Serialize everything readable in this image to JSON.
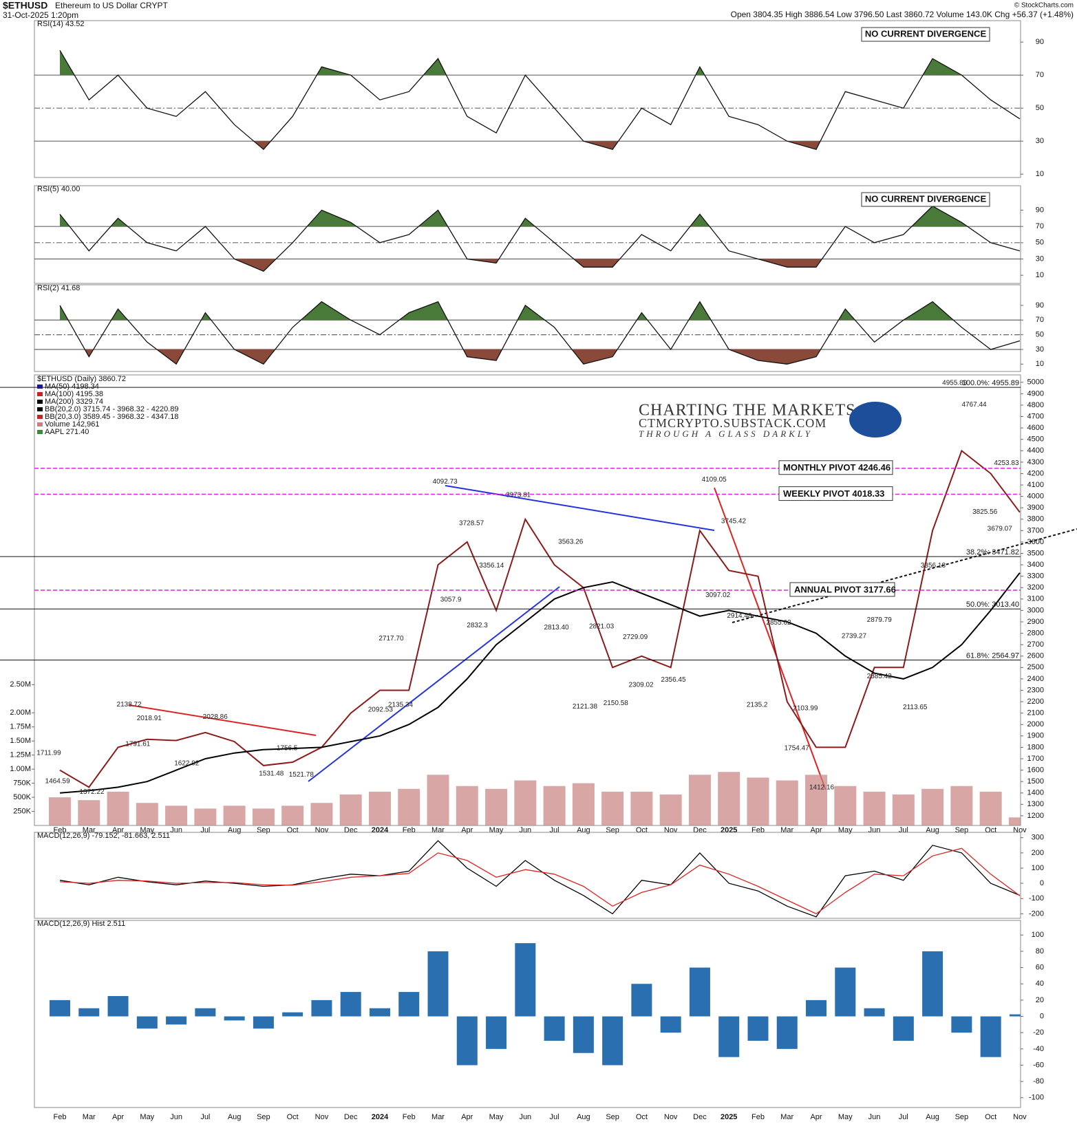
{
  "header": {
    "symbol": "$ETHUSD",
    "description": "Ethereum to US Dollar  CRYPT",
    "timestamp": "31-Oct-2025 1:20pm",
    "quote": "Open 3804.35  High 3886.54  Low 3796.50  Last 3860.72  Volume 143.0K  Chg +56.37 (+1.48%)",
    "credit": "© StockCharts.com"
  },
  "watermark": {
    "line1": "CHARTING THE MARKETS AT",
    "line2": "CTMCRYPTO.SUBSTACK.COM",
    "line3": "THROUGH A GLASS DARKLY"
  },
  "chart_data": [
    {
      "type": "line",
      "label": "RSI(14) 43.52",
      "ylim": [
        8,
        103
      ],
      "yticks": [
        10,
        30,
        50,
        70,
        90
      ],
      "levels": [
        30,
        50,
        70
      ],
      "fill_above": 70,
      "fill_below": 30,
      "annotation": "NO CURRENT DIVERGENCE",
      "series": [
        {
          "color": "#111111",
          "values": [
            85,
            55,
            70,
            50,
            45,
            60,
            40,
            25,
            45,
            75,
            70,
            55,
            60,
            80,
            45,
            35,
            70,
            50,
            30,
            25,
            50,
            40,
            75,
            45,
            40,
            30,
            25,
            60,
            55,
            50,
            80,
            70,
            55,
            43.52
          ]
        }
      ]
    },
    {
      "type": "line",
      "label": "RSI(5) 40.00",
      "ylim": [
        0,
        120
      ],
      "yticks": [
        10,
        30,
        50,
        70,
        90
      ],
      "levels": [
        30,
        50,
        70
      ],
      "fill_above": 70,
      "fill_below": 30,
      "annotation": "NO CURRENT DIVERGENCE",
      "series": [
        {
          "color": "#111111",
          "values": [
            85,
            40,
            80,
            50,
            40,
            70,
            30,
            15,
            50,
            90,
            75,
            50,
            60,
            90,
            30,
            25,
            80,
            50,
            20,
            20,
            60,
            40,
            85,
            40,
            30,
            20,
            20,
            70,
            50,
            60,
            95,
            75,
            50,
            40
          ]
        }
      ]
    },
    {
      "type": "line",
      "label": "RSI(2) 41.68",
      "ylim": [
        0,
        118
      ],
      "yticks": [
        10,
        30,
        50,
        70,
        90
      ],
      "levels": [
        30,
        50,
        70
      ],
      "fill_above": 70,
      "fill_below": 30,
      "series": [
        {
          "color": "#111111",
          "values": [
            90,
            20,
            85,
            40,
            10,
            80,
            30,
            10,
            60,
            95,
            70,
            50,
            80,
            95,
            20,
            15,
            90,
            60,
            10,
            20,
            80,
            30,
            95,
            30,
            15,
            10,
            20,
            85,
            40,
            70,
            95,
            60,
            30,
            41.68
          ]
        }
      ]
    },
    {
      "type": "line",
      "title": "$ETHUSD (Daily) 3860.72",
      "categories": [
        "Feb",
        "Mar",
        "Apr",
        "May",
        "Jun",
        "Jul",
        "Aug",
        "Sep",
        "Oct",
        "Nov",
        "Dec",
        "2024",
        "Feb",
        "Mar",
        "Apr",
        "May",
        "Jun",
        "Jul",
        "Aug",
        "Sep",
        "Oct",
        "Nov",
        "Dec",
        "2025",
        "Feb",
        "Mar",
        "Apr",
        "May",
        "Jun",
        "Jul",
        "Aug",
        "Sep",
        "Oct",
        "Nov"
      ],
      "ylim": [
        1115,
        5065
      ],
      "yticks": [
        1200,
        1300,
        1400,
        1500,
        1600,
        1700,
        1800,
        1900,
        2000,
        2100,
        2200,
        2300,
        2400,
        2500,
        2600,
        2700,
        2800,
        2900,
        3000,
        3100,
        3200,
        3300,
        3400,
        3500,
        3600,
        3700,
        3800,
        3900,
        4000,
        4100,
        4200,
        4300,
        4400,
        4500,
        4600,
        4700,
        4800,
        4900,
        5000
      ],
      "series": [
        {
          "name": "$ETHUSD (Daily) 3860.72",
          "color": "#8b1a1a",
          "values": [
            1600,
            1450,
            1800,
            1870,
            1860,
            1930,
            1850,
            1640,
            1670,
            1800,
            2100,
            2300,
            2300,
            3400,
            3600,
            3000,
            3800,
            3400,
            3200,
            2500,
            2600,
            2500,
            3700,
            3350,
            3300,
            2200,
            1800,
            1800,
            2500,
            2500,
            3700,
            4400,
            4200,
            3860.72
          ]
        },
        {
          "name": "MA(200) 3329.74",
          "color": "#000000",
          "values": [
            1400,
            1420,
            1450,
            1500,
            1600,
            1700,
            1750,
            1780,
            1790,
            1800,
            1850,
            1900,
            2000,
            2150,
            2400,
            2700,
            2900,
            3100,
            3200,
            3250,
            3150,
            3050,
            2950,
            3000,
            2950,
            2900,
            2800,
            2600,
            2450,
            2400,
            2500,
            2700,
            3000,
            3329.74
          ]
        }
      ],
      "legend_extra": [
        {
          "name": "MA(50) 4198.34",
          "color": "#1a1a8c"
        },
        {
          "name": "MA(100) 4195.38",
          "color": "#cc2222"
        },
        {
          "name": "BB(20,2.0) 3715.74 - 3968.32 - 4220.89",
          "color": "#000000"
        },
        {
          "name": "BB(20,3.0) 3589.45 - 3968.32 - 4347.18",
          "color": "#cc2222"
        },
        {
          "name": "AAPL 271.40",
          "color": "#3a8a3a"
        }
      ],
      "volume": {
        "name": "Volume 142,961",
        "color": "#c98080",
        "values": [
          500000,
          450000,
          600000,
          400000,
          350000,
          300000,
          350000,
          300000,
          350000,
          400000,
          550000,
          600000,
          650000,
          900000,
          700000,
          650000,
          800000,
          700000,
          750000,
          600000,
          600000,
          550000,
          900000,
          950000,
          850000,
          800000,
          900000,
          700000,
          600000,
          550000,
          650000,
          700000,
          600000,
          142961
        ]
      },
      "vlim": [
        0,
        8000000
      ],
      "vticks": [
        {
          "value": 250000,
          "label": "250K"
        },
        {
          "value": 500000,
          "label": "500K"
        },
        {
          "value": 750000,
          "label": "750K"
        },
        {
          "value": 1000000,
          "label": "1.00M"
        },
        {
          "value": 1250000,
          "label": "1.25M"
        },
        {
          "value": 1500000,
          "label": "1.50M"
        },
        {
          "value": 1750000,
          "label": "1.75M"
        },
        {
          "value": 2000000,
          "label": "2.00M"
        },
        {
          "value": 2500000,
          "label": "2.50M"
        }
      ],
      "pivots": [
        {
          "label": "MONTHLY PIVOT 4246.46",
          "value": 4246.46
        },
        {
          "label": "WEEKLY PIVOT 4018.33",
          "value": 4018.33
        },
        {
          "label": "ANNUAL PIVOT 3177.66",
          "value": 3177.66
        }
      ],
      "pivot_color": "#e020e0",
      "fib_levels": [
        {
          "label": "100.0%: 4955.89",
          "value": 4955.89
        },
        {
          "label": "38.2%: 3471.82",
          "value": 3471.82
        },
        {
          "label": "50.0%: 3013.40",
          "value": 3013.4
        },
        {
          "label": "61.8%: 2564.97",
          "value": 2564.97
        }
      ],
      "price_labels": [
        {
          "value": 1711.99,
          "x": -0.38
        },
        {
          "value": 1464.59,
          "x": -0.08
        },
        {
          "value": 1372.22,
          "x": 1.1
        },
        {
          "value": 2138.72,
          "x": 2.38
        },
        {
          "value": 2018.91,
          "x": 3.07
        },
        {
          "value": 1791.61,
          "x": 2.68
        },
        {
          "value": 1622.92,
          "x": 4.36
        },
        {
          "value": 2028.86,
          "x": 5.34
        },
        {
          "value": 1531.48,
          "x": 7.27
        },
        {
          "value": 1756.5,
          "x": 7.81
        },
        {
          "value": 1521.78,
          "x": 8.3
        },
        {
          "value": 2092.53,
          "x": 11.02
        },
        {
          "value": 2135.34,
          "x": 11.71
        },
        {
          "value": 2717.7,
          "label": "2717.70",
          "x": 11.39
        },
        {
          "value": 4092.73,
          "x": 13.24
        },
        {
          "value": 3728.57,
          "x": 14.15
        },
        {
          "value": 3356.14,
          "x": 14.84
        },
        {
          "value": 3057.9,
          "x": 13.44
        },
        {
          "value": 2832.3,
          "x": 14.35
        },
        {
          "value": 3973.81,
          "x": 15.76
        },
        {
          "value": 3563.26,
          "x": 17.56
        },
        {
          "value": 2813.4,
          "label": "2813.40",
          "x": 17.07
        },
        {
          "value": 2821.03,
          "x": 18.62
        },
        {
          "value": 2729.09,
          "x": 19.78
        },
        {
          "value": 2121.38,
          "x": 18.05
        },
        {
          "value": 2150.58,
          "x": 19.11
        },
        {
          "value": 2309.02,
          "x": 19.98
        },
        {
          "value": 2356.45,
          "x": 21.09
        },
        {
          "value": 4109.05,
          "x": 22.49
        },
        {
          "value": 3745.42,
          "x": 23.16
        },
        {
          "value": 3097.02,
          "x": 22.62
        },
        {
          "value": 2914.48,
          "x": 23.36
        },
        {
          "value": 2855.62,
          "x": 24.71
        },
        {
          "value": 2135.2,
          "x": 23.97
        },
        {
          "value": 2739.27,
          "x": 27.3
        },
        {
          "value": 2879.79,
          "x": 28.17
        },
        {
          "value": 2103.99,
          "x": 25.63
        },
        {
          "value": 1754.47,
          "x": 25.33
        },
        {
          "value": 1412.16,
          "x": 26.19
        },
        {
          "value": 2385.42,
          "x": 28.17
        },
        {
          "value": 2113.65,
          "x": 29.4
        },
        {
          "value": 3356.18,
          "x": 30.02
        },
        {
          "value": 4955.89,
          "x": 30.76
        },
        {
          "value": 4767.44,
          "x": 31.43
        },
        {
          "value": 4253.83,
          "x": 32.54
        },
        {
          "value": 3825.56,
          "x": 31.8
        },
        {
          "value": 3679.07,
          "x": 32.31
        }
      ]
    },
    {
      "type": "line",
      "label": "MACD(12,26,9) -79.152, -81.663, 2.511",
      "ylim": [
        -230,
        335
      ],
      "yticks": [
        -200,
        -100,
        0,
        100,
        200,
        300
      ],
      "series": [
        {
          "color": "#000000",
          "values": [
            20,
            -10,
            40,
            10,
            -10,
            15,
            0,
            -20,
            -10,
            30,
            60,
            50,
            80,
            280,
            100,
            -20,
            150,
            20,
            -80,
            -200,
            20,
            -10,
            200,
            0,
            -50,
            -150,
            -220,
            50,
            80,
            20,
            250,
            200,
            0,
            -79.152
          ]
        },
        {
          "color": "#dd2222",
          "values": [
            10,
            0,
            20,
            15,
            0,
            5,
            5,
            -10,
            -12,
            10,
            40,
            50,
            65,
            200,
            150,
            40,
            90,
            60,
            -20,
            -150,
            -60,
            -10,
            120,
            60,
            -20,
            -110,
            -200,
            -60,
            60,
            50,
            180,
            230,
            60,
            -81.663
          ]
        }
      ]
    },
    {
      "type": "bar",
      "label": "MACD(12,26,9) Hist 2.511",
      "ylim": [
        -112,
        118
      ],
      "yticks": [
        -100,
        -80,
        -60,
        -40,
        -20,
        0,
        20,
        40,
        60,
        80,
        100
      ],
      "color": "#2a6fb0",
      "values": [
        20,
        10,
        25,
        -15,
        -10,
        10,
        -5,
        -15,
        5,
        20,
        30,
        10,
        30,
        80,
        -60,
        -40,
        90,
        -30,
        -45,
        -60,
        40,
        -20,
        60,
        -50,
        -30,
        -40,
        20,
        60,
        10,
        -30,
        80,
        -20,
        -50,
        2.511
      ]
    }
  ]
}
